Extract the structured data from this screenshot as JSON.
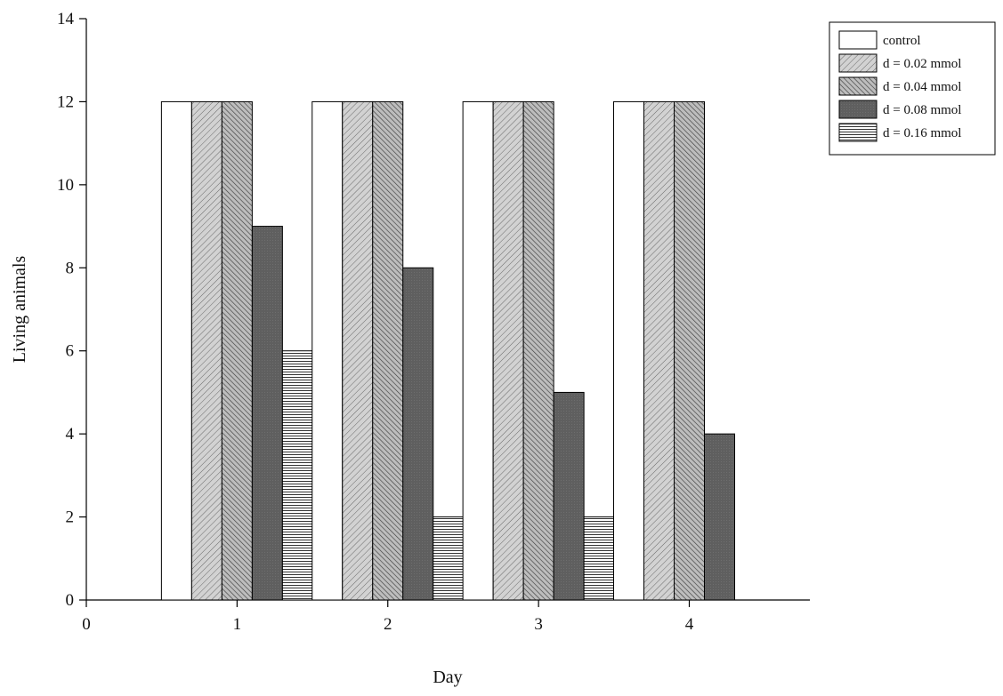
{
  "chart_data": {
    "type": "bar",
    "title": "",
    "xlabel": "Day",
    "ylabel": "Living animals",
    "categories": [
      1,
      2,
      3,
      4
    ],
    "xlim": [
      0,
      4.8
    ],
    "ylim": [
      0,
      14
    ],
    "x_ticks": [
      "0",
      "1",
      "2",
      "3",
      "4"
    ],
    "y_ticks": [
      "0",
      "2",
      "4",
      "6",
      "8",
      "10",
      "12",
      "14"
    ],
    "grid": false,
    "legend_position": "top-right",
    "series": [
      {
        "name": "control",
        "values": [
          12,
          12,
          12,
          12
        ],
        "pattern": "plain",
        "color": "#ffffff"
      },
      {
        "name": "d =  0.02 mmol",
        "values": [
          12,
          12,
          12,
          12
        ],
        "pattern": "diagonal-fine",
        "color": "#c8c8c8"
      },
      {
        "name": "d =  0.04 mmol",
        "values": [
          12,
          12,
          12,
          12
        ],
        "pattern": "diagonal-dense",
        "color": "#b0b0b0"
      },
      {
        "name": "d =  0.08 mmol",
        "values": [
          9,
          8,
          5,
          4
        ],
        "pattern": "solid-dark",
        "color": "#616161"
      },
      {
        "name": "d =  0.16 mmol",
        "values": [
          6,
          2,
          2,
          0
        ],
        "pattern": "horizontal-lines",
        "color": "#ffffff"
      }
    ]
  }
}
